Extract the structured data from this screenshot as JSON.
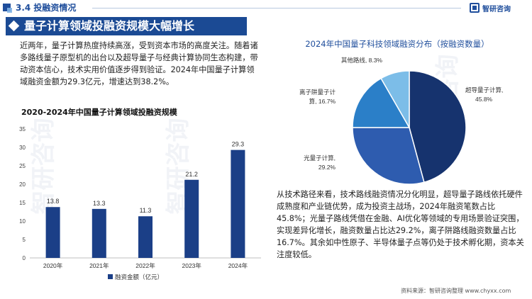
{
  "header": {
    "section": "3.4 投融资情况",
    "logo_text": "智研咨询"
  },
  "banner": {
    "title": "量子计算领域投融资规模大幅增长"
  },
  "intro": "近两年，量子计算热度持续高涨，受到资本市场的高度关注。随着诸多路线量子原型机的出台以及超导量子与经典计算协同生态构建，带动资本信心，技术实用价值逐步得到验证。2024年中国量子计算领域融资金额为29.3亿元，增速达到38.2%。",
  "analysis": "从技术路径来看，技术路线融资情况分化明显，超导量子路线依托硬件成熟度和产业链优势，成为投资主战场，2024年融资笔数占比45.8%；光量子路线凭借在金融、AI优化等领域的专用场景验证突围，实现差异化增长，融资数量占比达29.2%，离子阱路线融资数量占比16.7%。其余如中性原子、半导体量子点等仍处于技术孵化期，资本关注度较低。",
  "source": "资料来源：智研咨询整理  www.chyxx.com",
  "colors": {
    "brand": "#1f4e9c",
    "bar": "#1b3f87"
  },
  "chart_data": [
    {
      "type": "bar",
      "title": "2020-2024年中国量子计算领域投融资规模",
      "categories": [
        "2020年",
        "2021年",
        "2022年",
        "2023年",
        "2024年"
      ],
      "series": [
        {
          "name": "融资金额（亿元）",
          "values": [
            13.8,
            13.3,
            11.3,
            21.2,
            29.3
          ]
        }
      ],
      "ylim": [
        0,
        35
      ],
      "yticks": [
        "0",
        "5",
        "10",
        "15",
        "20",
        "25",
        "30",
        "35"
      ],
      "legend": "bottom",
      "grid": false
    },
    {
      "type": "pie",
      "title": "2024年中国量子科技领域融资分布（按融资数量）",
      "slices": [
        {
          "label": "超导量子计算,",
          "pct_text": "45.8%",
          "value": 45.8,
          "color": "#16336e"
        },
        {
          "label": "光量子计算,",
          "pct_text": "29.2%",
          "value": 29.2,
          "color": "#2e5caf"
        },
        {
          "label": "离子阱量子计",
          "label2": "算, 16.7%",
          "value": 16.7,
          "color": "#2b7fc8"
        },
        {
          "label": "其他路线, 8.3%",
          "value": 8.3,
          "color": "#7cbde8"
        }
      ]
    }
  ]
}
